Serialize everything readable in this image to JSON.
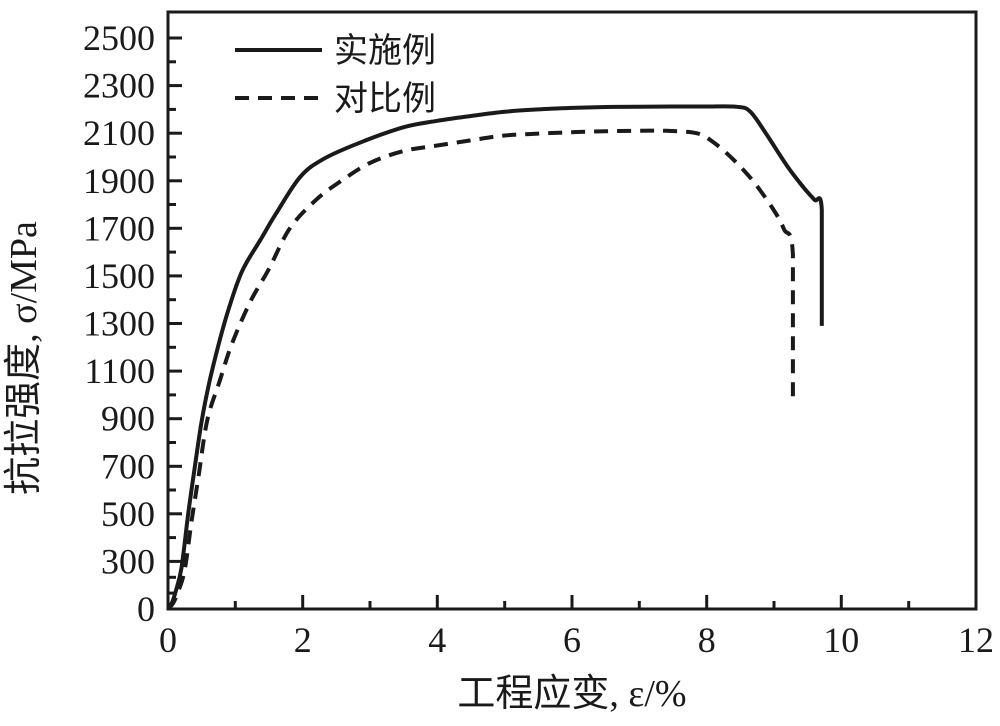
{
  "figure": {
    "background_color": "#ffffff",
    "ink_color": "#1a1a1a"
  },
  "chart_data": {
    "type": "line",
    "title": "",
    "xlabel": "工程应变, ε/%",
    "ylabel": "抗拉强度, σ/MPa",
    "xlim": [
      0,
      12
    ],
    "x_ticks": [
      0,
      2,
      4,
      6,
      8,
      10,
      12
    ],
    "x_minor_ticks": [
      1,
      3,
      5,
      7,
      9,
      11
    ],
    "y_tick_labels": [
      0,
      300,
      500,
      700,
      900,
      1100,
      1300,
      1500,
      1700,
      1900,
      2100,
      2300,
      2500
    ],
    "y_minor_ticks": [
      100,
      200,
      400,
      600,
      800,
      1000,
      1200,
      1400,
      1600,
      1800,
      2000,
      2200,
      2400
    ],
    "y_axis_scale_note": "labeled ticks are equally spaced on screen: first interval 0-300 MPa, then 200 MPa per interval",
    "grid": false,
    "legend_position": "top-left-inside",
    "series": [
      {
        "name": "实施例",
        "line_style": "solid",
        "peak_stress_mpa": 2210,
        "fracture_strain_pct": 9.7,
        "points": [
          [
            0,
            0
          ],
          [
            0.06,
            40
          ],
          [
            0.12,
            120
          ],
          [
            0.2,
            260
          ],
          [
            0.3,
            500
          ],
          [
            0.4,
            700
          ],
          [
            0.5,
            890
          ],
          [
            0.62,
            1060
          ],
          [
            0.75,
            1210
          ],
          [
            0.9,
            1360
          ],
          [
            1.1,
            1520
          ],
          [
            1.37,
            1650
          ],
          [
            1.6,
            1760
          ],
          [
            1.96,
            1915
          ],
          [
            2.3,
            1990
          ],
          [
            2.85,
            2060
          ],
          [
            3.5,
            2125
          ],
          [
            4.0,
            2152
          ],
          [
            4.5,
            2172
          ],
          [
            5.0,
            2190
          ],
          [
            5.5,
            2200
          ],
          [
            6.0,
            2206
          ],
          [
            6.5,
            2210
          ],
          [
            7.0,
            2211
          ],
          [
            7.5,
            2212
          ],
          [
            8.0,
            2212
          ],
          [
            8.45,
            2211
          ],
          [
            8.65,
            2190
          ],
          [
            8.9,
            2090
          ],
          [
            9.2,
            1960
          ],
          [
            9.45,
            1868
          ],
          [
            9.6,
            1820
          ],
          [
            9.71,
            1778
          ],
          [
            9.71,
            1290
          ]
        ]
      },
      {
        "name": "对比例",
        "line_style": "dashed",
        "peak_stress_mpa": 2110,
        "fracture_strain_pct": 9.3,
        "points": [
          [
            0,
            0
          ],
          [
            0.08,
            40
          ],
          [
            0.16,
            120
          ],
          [
            0.25,
            250
          ],
          [
            0.35,
            470
          ],
          [
            0.45,
            650
          ],
          [
            0.58,
            890
          ],
          [
            0.77,
            1060
          ],
          [
            0.95,
            1215
          ],
          [
            1.22,
            1390
          ],
          [
            1.5,
            1530
          ],
          [
            1.81,
            1700
          ],
          [
            2.2,
            1820
          ],
          [
            2.55,
            1895
          ],
          [
            3.0,
            1975
          ],
          [
            3.5,
            2025
          ],
          [
            4.0,
            2048
          ],
          [
            4.5,
            2070
          ],
          [
            5.0,
            2090
          ],
          [
            5.5,
            2098
          ],
          [
            6.0,
            2104
          ],
          [
            6.5,
            2108
          ],
          [
            7.0,
            2110
          ],
          [
            7.4,
            2110
          ],
          [
            7.85,
            2100
          ],
          [
            8.1,
            2062
          ],
          [
            8.4,
            1988
          ],
          [
            8.7,
            1895
          ],
          [
            9.0,
            1775
          ],
          [
            9.15,
            1695
          ],
          [
            9.28,
            1590
          ],
          [
            9.28,
            965
          ]
        ]
      }
    ]
  }
}
